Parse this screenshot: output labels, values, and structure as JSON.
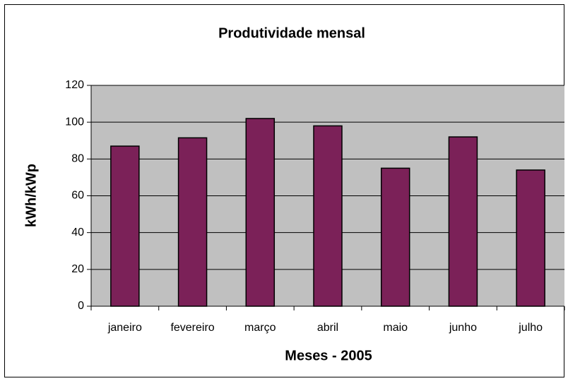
{
  "chart_data": {
    "type": "bar",
    "title": "Produtividade mensal",
    "x_label": "Meses - 2005",
    "y_label": "kWh/kWp",
    "categories": [
      "janeiro",
      "fevereiro",
      "março",
      "abril",
      "maio",
      "junho",
      "julho"
    ],
    "values": [
      87,
      91.5,
      102,
      98,
      75,
      92,
      74
    ],
    "color": "#7b2158",
    "ylim": [
      0,
      120
    ],
    "yticks": [
      0,
      20,
      40,
      60,
      80,
      100,
      120
    ],
    "grid": true
  }
}
